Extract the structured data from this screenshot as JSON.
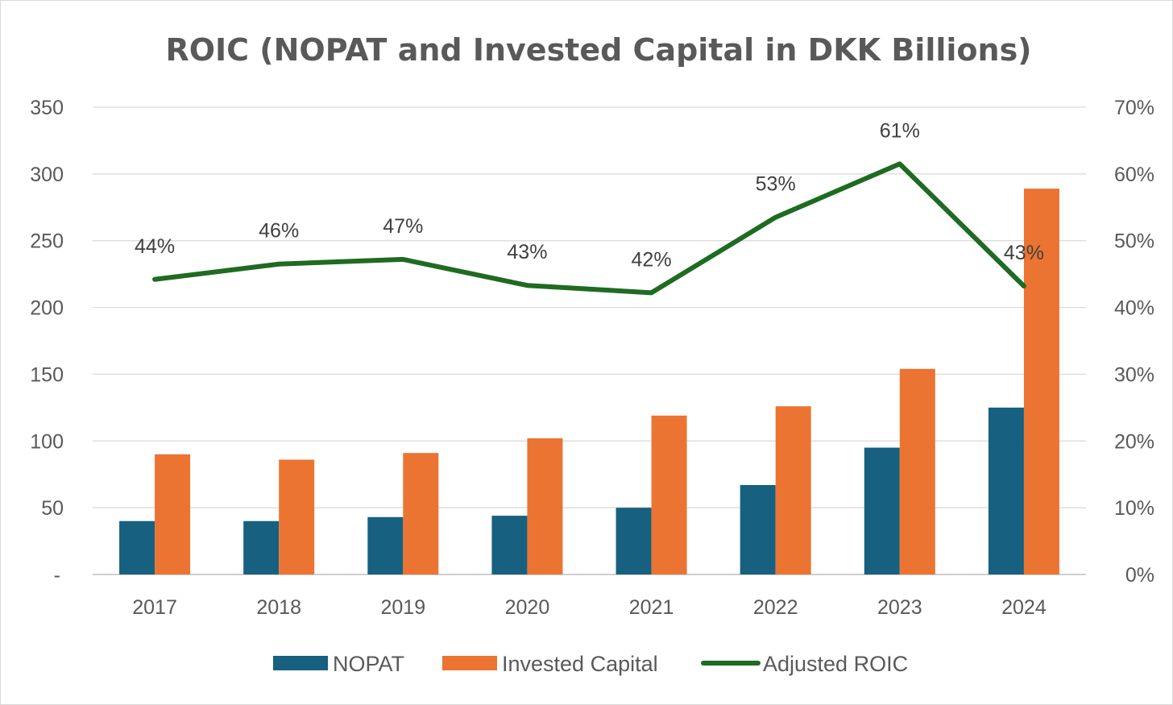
{
  "chart_data": {
    "type": "bar",
    "title": "ROIC (NOPAT and Invested Capital in DKK Billions)",
    "categories": [
      "2017",
      "2018",
      "2019",
      "2020",
      "2021",
      "2022",
      "2023",
      "2024"
    ],
    "series": [
      {
        "name": "NOPAT",
        "type": "bar",
        "axis": "left",
        "color": "#17607f",
        "values": [
          40,
          40,
          43,
          44,
          50,
          67,
          95,
          125
        ]
      },
      {
        "name": "Invested Capital",
        "type": "bar",
        "axis": "left",
        "color": "#eb7433",
        "values": [
          90,
          86,
          91,
          102,
          119,
          126,
          154,
          289
        ]
      },
      {
        "name": "Adjusted ROIC",
        "type": "line",
        "axis": "right",
        "color": "#1e6b21",
        "values": [
          0.442,
          0.465,
          0.472,
          0.433,
          0.422,
          0.535,
          0.615,
          0.432
        ],
        "labels": [
          "44%",
          "46%",
          "47%",
          "43%",
          "42%",
          "53%",
          "61%",
          "43%"
        ]
      }
    ],
    "y_left": {
      "min": 0,
      "max": 350,
      "ticks": [
        0,
        50,
        100,
        150,
        200,
        250,
        300,
        350
      ],
      "tick_labels": [
        "-",
        "50",
        "100",
        "150",
        "200",
        "250",
        "300",
        "350"
      ]
    },
    "y_right": {
      "min": 0,
      "max": 0.7,
      "ticks": [
        0,
        0.1,
        0.2,
        0.3,
        0.4,
        0.5,
        0.6,
        0.7
      ],
      "tick_labels": [
        "0%",
        "10%",
        "20%",
        "30%",
        "40%",
        "50%",
        "60%",
        "70%"
      ]
    },
    "grid": true,
    "legend_position": "bottom"
  }
}
